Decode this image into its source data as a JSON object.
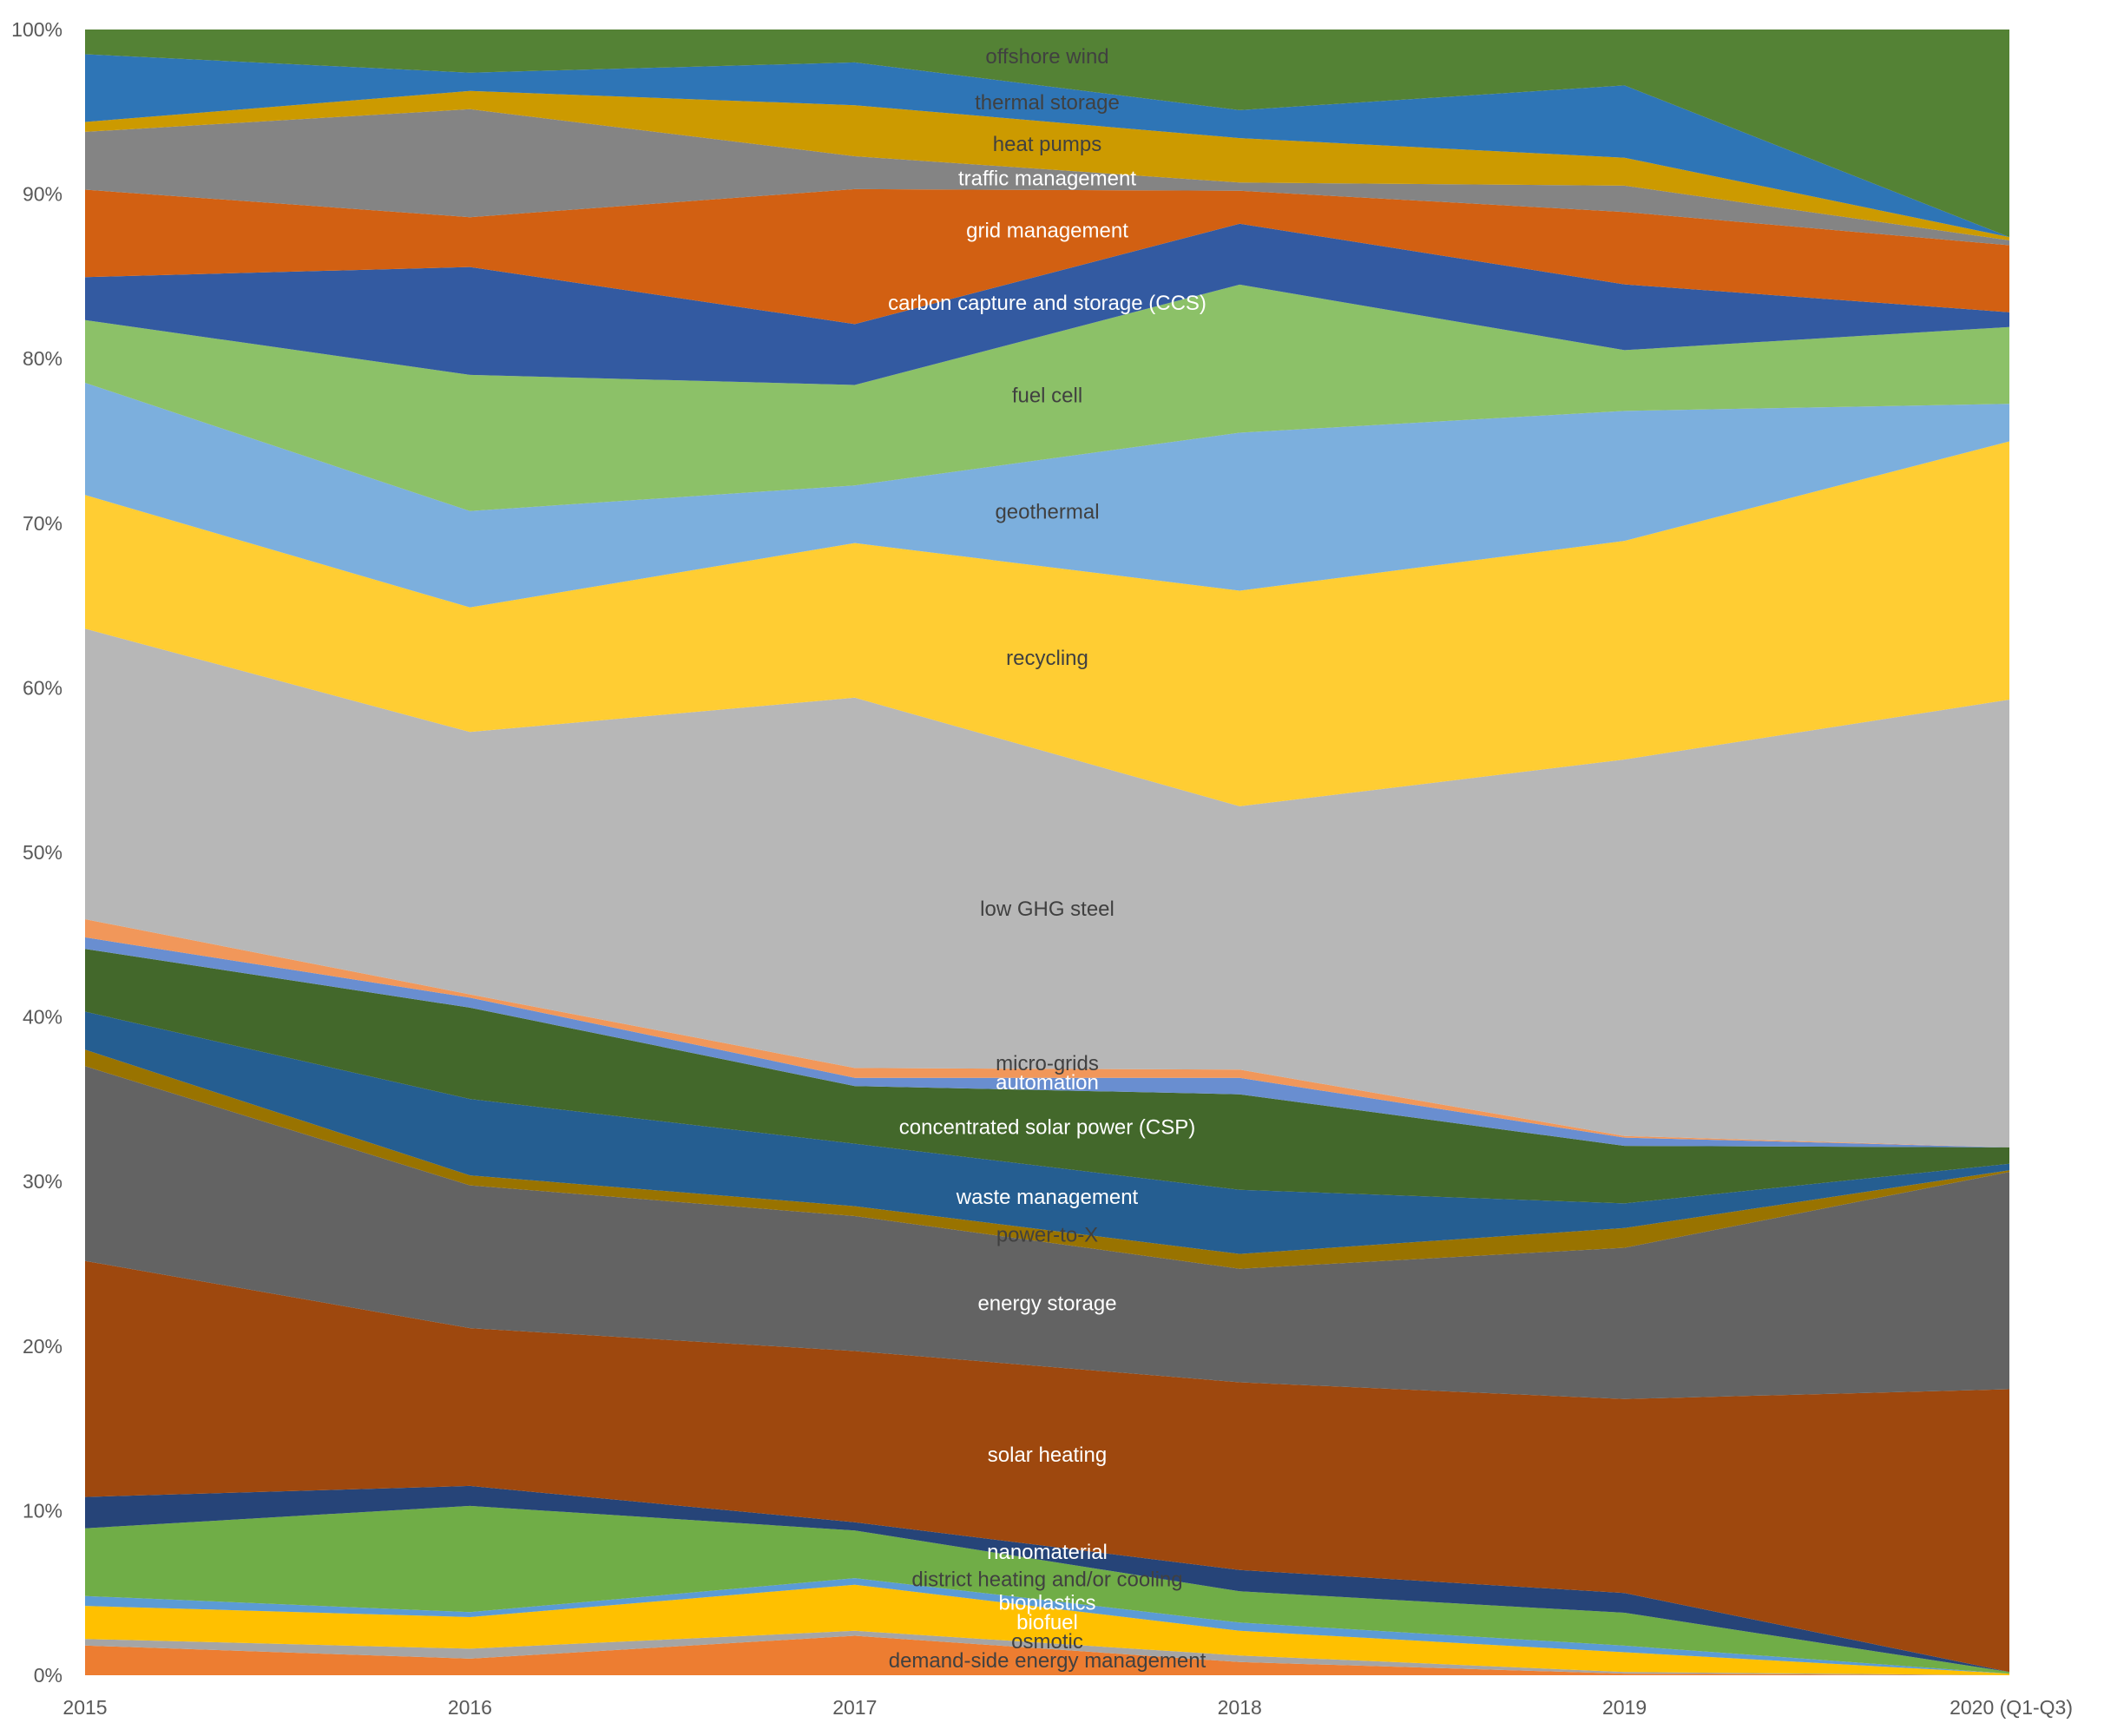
{
  "chart_data": {
    "type": "area",
    "stacking": "percent",
    "title": "",
    "xlabel": "",
    "ylabel": "",
    "ylim": [
      0,
      100
    ],
    "grid": false,
    "legend": "none (series labels drawn inside areas)",
    "x": [
      "2015",
      "2016",
      "2017",
      "2018",
      "2019",
      "2020 (Q1-Q3)"
    ],
    "y_ticks": [
      "0%",
      "10%",
      "20%",
      "30%",
      "40%",
      "50%",
      "60%",
      "70%",
      "80%",
      "90%",
      "100%"
    ],
    "series": [
      {
        "name": "demand-side energy management",
        "color": "#ED7D31",
        "label_color": "#404040",
        "values": [
          1.8,
          1.0,
          2.4,
          0.8,
          0.1,
          0.0
        ]
      },
      {
        "name": "osmotic",
        "color": "#A5A5A5",
        "label_color": "#404040",
        "values": [
          0.4,
          0.6,
          0.3,
          0.4,
          0.1,
          0.0
        ]
      },
      {
        "name": "biofuel",
        "color": "#FFC000",
        "label_color": "#ffffff",
        "values": [
          2.0,
          1.9,
          2.8,
          1.5,
          1.2,
          0.1
        ]
      },
      {
        "name": "bioplastics",
        "color": "#5B9BD5",
        "label_color": "#ffffff",
        "values": [
          0.6,
          0.3,
          0.4,
          0.5,
          0.4,
          0.0
        ]
      },
      {
        "name": "district heating and/or cooling",
        "color": "#70AD47",
        "label_color": "#404040",
        "values": [
          4.1,
          6.4,
          2.9,
          1.9,
          2.0,
          0.1
        ]
      },
      {
        "name": "nanomaterial",
        "color": "#264478",
        "label_color": "#ffffff",
        "values": [
          1.9,
          1.2,
          0.5,
          1.3,
          1.2,
          0.0
        ]
      },
      {
        "name": "solar heating",
        "color": "#9E480E",
        "label_color": "#ffffff",
        "values": [
          14.3,
          9.5,
          10.4,
          11.4,
          11.8,
          17.3
        ]
      },
      {
        "name": "energy storage",
        "color": "#636363",
        "label_color": "#ffffff",
        "values": [
          11.8,
          8.6,
          8.2,
          6.9,
          9.2,
          13.3
        ]
      },
      {
        "name": "power-to-X",
        "color": "#997300",
        "label_color": "#404040",
        "values": [
          1.0,
          0.6,
          0.6,
          0.9,
          1.2,
          0.1
        ]
      },
      {
        "name": "waste management",
        "color": "#255E91",
        "label_color": "#ffffff",
        "values": [
          2.3,
          4.6,
          3.8,
          3.9,
          1.5,
          0.4
        ]
      },
      {
        "name": "concentrated solar power (CSP)",
        "color": "#43682B",
        "label_color": "#ffffff",
        "values": [
          3.8,
          5.5,
          3.5,
          5.8,
          3.5,
          1.0
        ]
      },
      {
        "name": "automation",
        "color": "#698ED0",
        "label_color": "#ffffff",
        "values": [
          0.7,
          0.6,
          0.5,
          1.0,
          0.5,
          0.0
        ]
      },
      {
        "name": "micro-grids",
        "color": "#F1975A",
        "label_color": "#404040",
        "values": [
          1.1,
          0.2,
          0.6,
          0.5,
          0.1,
          0.0
        ]
      },
      {
        "name": "low GHG steel",
        "color": "#B7B7B7",
        "label_color": "#404040",
        "values": [
          17.6,
          15.8,
          22.5,
          16.0,
          22.9,
          27.4
        ]
      },
      {
        "name": "recycling",
        "color": "#FFCD33",
        "label_color": "#404040",
        "values": [
          8.1,
          7.5,
          9.4,
          13.1,
          13.3,
          15.8
        ]
      },
      {
        "name": "geothermal",
        "color": "#7CAFDD",
        "label_color": "#404040",
        "values": [
          6.8,
          5.8,
          3.5,
          9.6,
          7.9,
          2.3
        ]
      },
      {
        "name": "fuel cell",
        "color": "#8CC168",
        "label_color": "#404040",
        "values": [
          3.8,
          8.2,
          6.1,
          9.0,
          3.7,
          4.7
        ]
      },
      {
        "name": "carbon capture and storage (CCS)",
        "color": "#335AA1",
        "label_color": "#ffffff",
        "values": [
          2.6,
          6.5,
          3.7,
          3.7,
          4.0,
          0.9
        ]
      },
      {
        "name": "grid management",
        "color": "#D26012",
        "label_color": "#ffffff",
        "values": [
          5.3,
          3.0,
          8.2,
          2.0,
          4.4,
          4.1
        ]
      },
      {
        "name": "traffic management",
        "color": "#848484",
        "label_color": "#ffffff",
        "values": [
          3.5,
          6.5,
          2.0,
          0.5,
          1.6,
          0.3
        ]
      },
      {
        "name": "heat pumps",
        "color": "#CC9A00",
        "label_color": "#404040",
        "values": [
          0.6,
          1.1,
          3.1,
          2.7,
          1.7,
          0.2
        ]
      },
      {
        "name": "thermal storage",
        "color": "#2E75B6",
        "label_color": "#404040",
        "values": [
          4.1,
          1.1,
          2.6,
          1.7,
          4.4,
          0.0
        ]
      },
      {
        "name": "offshore wind",
        "color": "#548235",
        "label_color": "#404040",
        "values": [
          1.5,
          2.6,
          2.0,
          4.9,
          3.4,
          12.7
        ]
      }
    ]
  }
}
